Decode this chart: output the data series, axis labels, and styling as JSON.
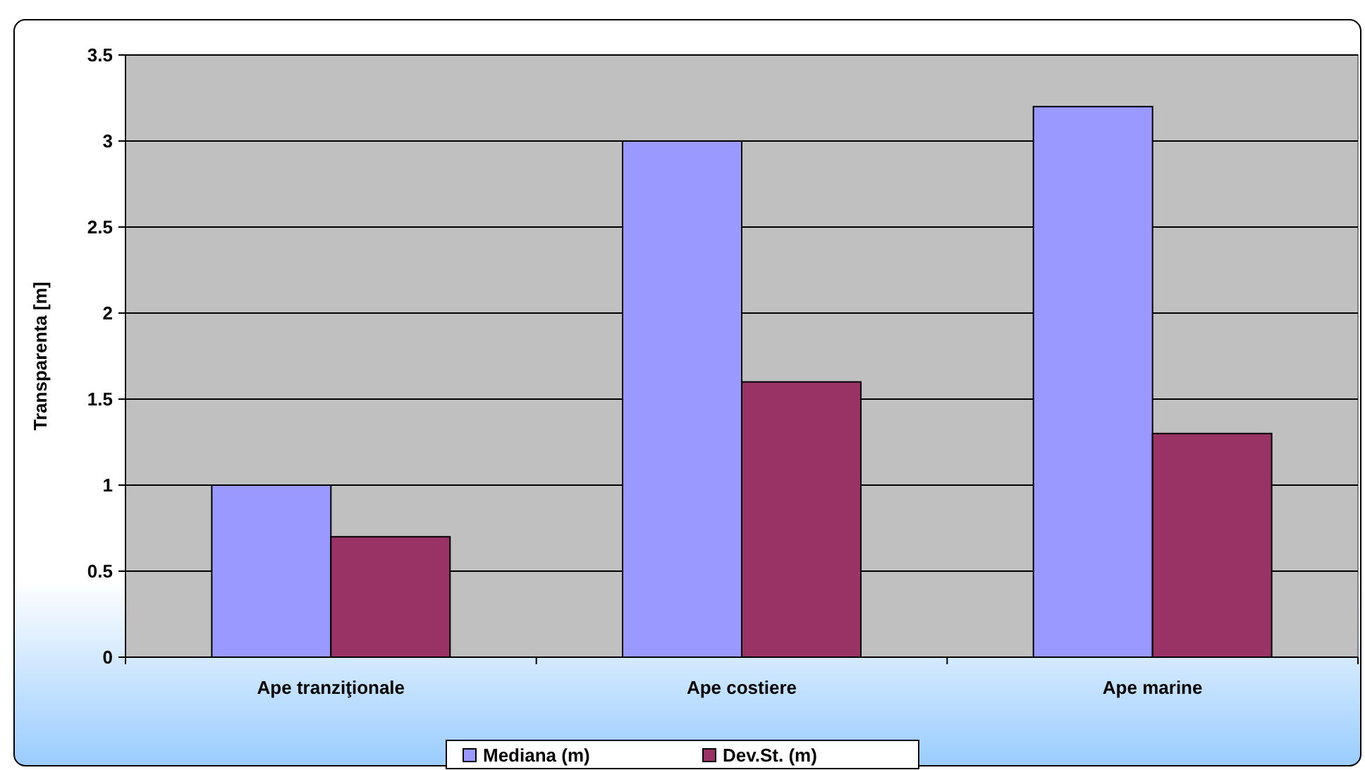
{
  "chart_data": {
    "type": "bar",
    "ylabel": "Transparenta [m]",
    "categories": [
      "Ape tranziţionale",
      "Ape costiere",
      "Ape marine"
    ],
    "series": [
      {
        "name": "Mediana (m)",
        "color": "#9999ff",
        "values": [
          1,
          3,
          3.2
        ]
      },
      {
        "name": "Dev.St. (m)",
        "color": "#993366",
        "values": [
          0.7,
          1.6,
          1.3
        ]
      }
    ],
    "ylim": [
      0,
      3.5
    ],
    "yticks": [
      0,
      0.5,
      1,
      1.5,
      2,
      2.5,
      3,
      3.5
    ],
    "grid": "y",
    "legend": "bottom"
  }
}
